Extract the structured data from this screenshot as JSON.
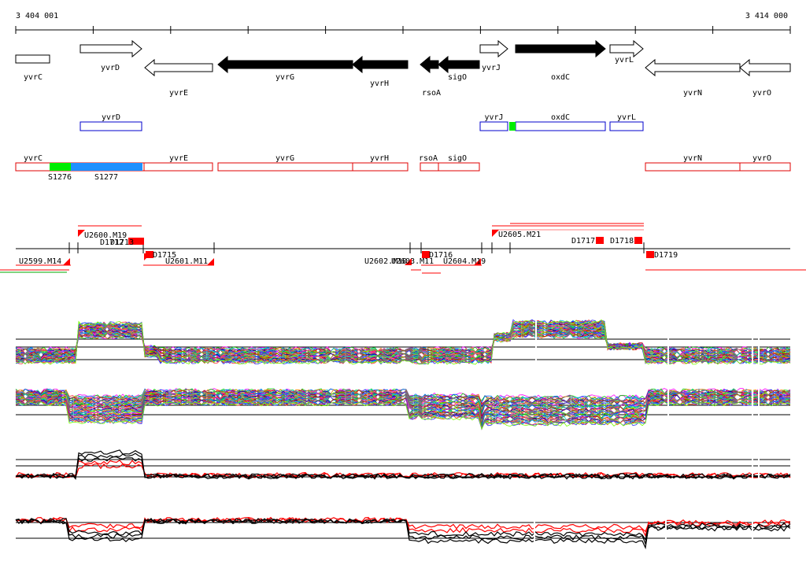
{
  "coords": {
    "start": "3 404 001",
    "end": "3 414 000"
  },
  "genes_top": [
    {
      "name": "yvrC",
      "strand": "none",
      "fill": "#ffffff"
    },
    {
      "name": "yvrD",
      "strand": "+",
      "fill": "#ffffff"
    },
    {
      "name": "yvrE",
      "strand": "-",
      "fill": "#ffffff"
    },
    {
      "name": "yvrG",
      "strand": "-",
      "fill": "#000000"
    },
    {
      "name": "yvrH",
      "strand": "-",
      "fill": "#000000"
    },
    {
      "name": "rsoA",
      "strand": "-",
      "fill": "#000000"
    },
    {
      "name": "sigO",
      "strand": "-",
      "fill": "#000000"
    },
    {
      "name": "yvrJ",
      "strand": "+",
      "fill": "#ffffff"
    },
    {
      "name": "oxdC",
      "strand": "+",
      "fill": "#000000"
    },
    {
      "name": "yvrL",
      "strand": "+",
      "fill": "#ffffff"
    },
    {
      "name": "yvrN",
      "strand": "-",
      "fill": "#ffffff"
    },
    {
      "name": "yvrO",
      "strand": "-",
      "fill": "#ffffff"
    }
  ],
  "blue_track": [
    "yvrD",
    "yvrJ",
    "oxdC",
    "yvrL"
  ],
  "red_track": [
    "yvrC",
    "yvrE",
    "yvrG",
    "yvrH",
    "rsoA",
    "sigO",
    "yvrN",
    "yvrO"
  ],
  "segments": [
    {
      "label": "S1276",
      "color": "#00ee00"
    },
    {
      "label": "S1277",
      "color": "#1e90ff"
    }
  ],
  "features": [
    "U2599.M14",
    "U2600.M19",
    "D1712",
    "D1713",
    "D1715",
    "U2601.M11",
    "U2602.M10",
    "U2603.M11",
    "D1716",
    "U2604.M19",
    "U2605.M21",
    "D1717",
    "D1718",
    "D1719"
  ],
  "colors": {
    "track_red": "#e00000",
    "track_blue": "#0000cc",
    "marker": "#ff0000"
  }
}
